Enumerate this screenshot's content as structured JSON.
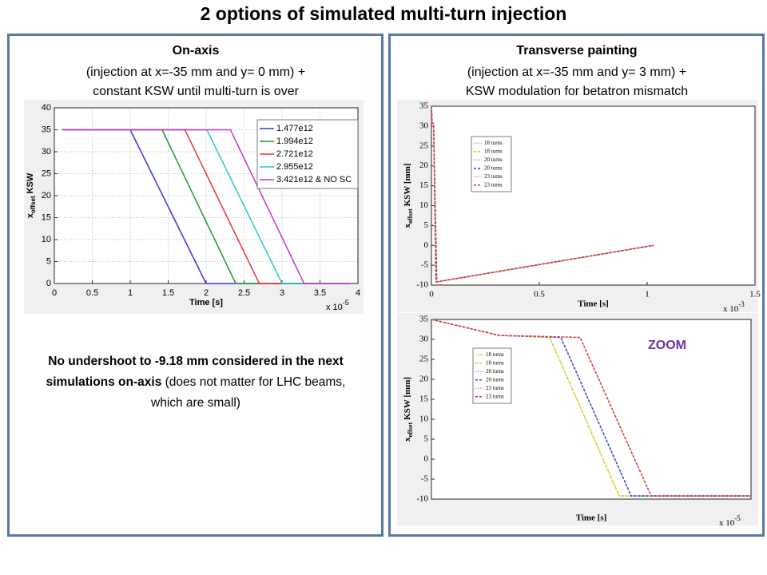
{
  "title": "2 options of simulated multi-turn injection",
  "left_panel": {
    "heading": "On-axis",
    "lines": [
      "(injection at x=-35 mm and y= 0 mm) +",
      "constant KSW until multi-turn is over"
    ],
    "note_bold": "No undershoot  to -9.18 mm considered in the next simulations  on-axis",
    "note_normal": "(does not matter for LHC beams, which are small)"
  },
  "right_panel": {
    "heading": "Transverse painting",
    "lines": [
      "(injection at x=-35 mm and y= 3 mm) +",
      "KSW modulation for betatron mismatch"
    ],
    "annotation": "ZOOM"
  },
  "chart_data": [
    {
      "type": "line",
      "xlabel": "Time [s]",
      "ylabel": {
        "main": "x",
        "sub": "offset",
        "rest": "KSW"
      },
      "x_multiplier": {
        "base": "x 10",
        "exponent": "-5"
      },
      "xlim": [
        0,
        4
      ],
      "xticks": [
        0,
        0.5,
        1,
        1.5,
        2,
        2.5,
        3,
        3.5,
        4
      ],
      "ylim": [
        0,
        40
      ],
      "yticks": [
        0,
        5,
        10,
        15,
        20,
        25,
        30,
        35,
        40
      ],
      "grid": true,
      "legend": "top-right",
      "series": [
        {
          "name": "1.477e12",
          "color": "#3333dd",
          "style": "solid",
          "x": [
            0.1,
            1.0,
            2.0,
            3.9
          ],
          "values": [
            35,
            35,
            0,
            0
          ]
        },
        {
          "name": "1.994e12",
          "color": "#22992a",
          "style": "solid",
          "x": [
            0.1,
            1.42,
            2.39,
            3.9
          ],
          "values": [
            35,
            35,
            0,
            0
          ]
        },
        {
          "name": "2.721e12",
          "color": "#ee3333",
          "style": "solid",
          "x": [
            0.1,
            1.72,
            2.7,
            3.9
          ],
          "values": [
            35,
            35,
            0,
            0
          ]
        },
        {
          "name": "2.955e12",
          "color": "#22cccc",
          "style": "solid",
          "x": [
            0.1,
            2.01,
            3.0,
            3.9
          ],
          "values": [
            35,
            35,
            0,
            0
          ]
        },
        {
          "name": "3.421e12 & NO SC",
          "color": "#cc33cc",
          "style": "solid",
          "x": [
            0.1,
            2.32,
            3.29,
            3.9
          ],
          "values": [
            35,
            35,
            0,
            0
          ]
        }
      ]
    },
    {
      "type": "line",
      "xlabel": "Time [s]",
      "ylabel": {
        "main": "x",
        "sub": "offset",
        "rest": "KSW [mm]"
      },
      "x_multiplier": {
        "base": "x 10",
        "exponent": "-3"
      },
      "xlim": [
        0,
        1.5
      ],
      "xticks": [
        0,
        0.5,
        1,
        1.5
      ],
      "ylim": [
        -10,
        35
      ],
      "yticks": [
        -10,
        -5,
        0,
        5,
        10,
        15,
        20,
        25,
        30,
        35
      ],
      "grid": false,
      "legend": "top-left",
      "series": [
        {
          "name": "18 turns",
          "color": "#c8c080",
          "style": "dotted",
          "x": [
            0,
            0.003,
            0.01,
            0.02,
            1.03
          ],
          "values": [
            35,
            31,
            30.5,
            -9.2,
            0
          ]
        },
        {
          "name": "18 turns",
          "color": "#e0d000",
          "style": "dashed",
          "x": [
            0,
            0.003,
            0.01,
            0.02,
            1.03
          ],
          "values": [
            35,
            31,
            30.5,
            -9.2,
            0
          ]
        },
        {
          "name": "20 turns",
          "color": "#a0b0e0",
          "style": "dotted",
          "x": [
            0,
            0.003,
            0.01,
            0.022,
            1.03
          ],
          "values": [
            35,
            31,
            30.5,
            -9.2,
            0
          ]
        },
        {
          "name": "20 turns",
          "color": "#3040e0",
          "style": "dashed",
          "x": [
            0,
            0.003,
            0.01,
            0.022,
            1.03
          ],
          "values": [
            35,
            31,
            30.5,
            -9.2,
            0
          ]
        },
        {
          "name": "23 turns",
          "color": "#f0a0a0",
          "style": "dotted",
          "x": [
            0,
            0.003,
            0.01,
            0.025,
            1.03
          ],
          "values": [
            35,
            31,
            30.5,
            -9.2,
            0
          ]
        },
        {
          "name": "23 turns",
          "color": "#e03030",
          "style": "dashed",
          "x": [
            0,
            0.003,
            0.01,
            0.025,
            1.03
          ],
          "values": [
            35,
            31,
            30.5,
            -9.2,
            0
          ]
        }
      ]
    },
    {
      "type": "line",
      "xlabel": "Time [s]",
      "ylabel": {
        "main": "x",
        "sub": "offset",
        "rest": "KSW [mm]"
      },
      "x_multiplier": {
        "base": "x 10",
        "exponent": "-5"
      },
      "xlim": [
        0,
        4
      ],
      "ylim": [
        -10,
        35
      ],
      "yticks": [
        -10,
        -5,
        0,
        5,
        10,
        15,
        20,
        25,
        30,
        35
      ],
      "grid": false,
      "legend": "top-left",
      "series": [
        {
          "name": "18 turns",
          "color": "#c8c080",
          "style": "dotted",
          "x": [
            0,
            0.85,
            1.48,
            2.35,
            4.0
          ],
          "values": [
            35,
            31,
            30.5,
            -9.2,
            -9.2
          ]
        },
        {
          "name": "18 turns",
          "color": "#e0d000",
          "style": "dashed",
          "x": [
            0,
            0.85,
            1.48,
            2.35,
            4.0
          ],
          "values": [
            35,
            31,
            30.5,
            -9.2,
            -9.2
          ]
        },
        {
          "name": "20 turns",
          "color": "#a0b0e0",
          "style": "dotted",
          "x": [
            0,
            0.85,
            1.62,
            2.5,
            4.0
          ],
          "values": [
            35,
            31,
            30.5,
            -9.2,
            -9.2
          ]
        },
        {
          "name": "20 turns",
          "color": "#3040e0",
          "style": "dashed",
          "x": [
            0,
            0.85,
            1.62,
            2.5,
            4.0
          ],
          "values": [
            35,
            31,
            30.5,
            -9.2,
            -9.2
          ]
        },
        {
          "name": "23 turns",
          "color": "#f0a0a0",
          "style": "dotted",
          "x": [
            0,
            0.85,
            1.86,
            2.75,
            4.0
          ],
          "values": [
            35,
            31,
            30.5,
            -9.2,
            -9.2
          ]
        },
        {
          "name": "23 turns",
          "color": "#e03030",
          "style": "dashed",
          "x": [
            0,
            0.85,
            1.86,
            2.75,
            4.0
          ],
          "values": [
            35,
            31,
            30.5,
            -9.2,
            -9.2
          ]
        }
      ]
    }
  ]
}
